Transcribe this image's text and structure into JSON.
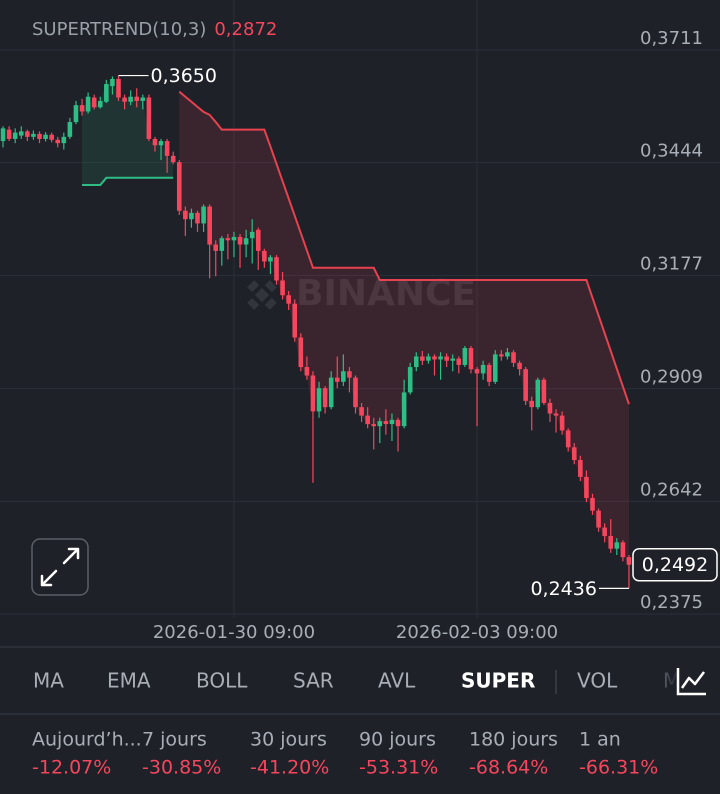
{
  "chart_data": {
    "type": "candlestick",
    "indicator": "SUPERTREND(10,3)",
    "indicator_value": {
      "value": 0.2872,
      "label": "0,2872"
    },
    "watermark": "BINANCE",
    "categories": [
      null,
      null,
      null,
      null,
      null,
      null,
      null,
      null,
      null,
      null,
      null,
      null,
      null,
      null,
      null,
      null,
      null,
      null,
      null,
      null,
      null,
      null,
      null,
      null,
      null,
      null,
      null,
      null,
      null,
      null,
      null,
      null,
      null,
      null,
      null,
      null,
      null,
      null,
      "2026-01-30 09:00",
      null,
      null,
      null,
      null,
      null,
      null,
      null,
      null,
      null,
      null,
      null,
      null,
      null,
      null,
      null,
      null,
      null,
      null,
      null,
      null,
      null,
      null,
      null,
      null,
      null,
      null,
      null,
      null,
      null,
      null,
      null,
      null,
      null,
      null,
      null,
      null,
      null,
      null,
      null,
      "2026-02-03 09:00",
      null,
      null,
      null,
      null,
      null,
      null,
      null,
      null,
      null,
      null,
      null,
      null,
      null,
      null,
      null,
      null,
      null,
      null,
      null,
      null,
      null,
      null,
      null,
      null,
      null
    ],
    "open": [
      0.3495,
      0.3522,
      0.35,
      0.3508,
      0.3518,
      0.3505,
      0.3512,
      0.35,
      0.351,
      0.3498,
      0.349,
      0.3505,
      0.354,
      0.358,
      0.3565,
      0.3598,
      0.3575,
      0.3588,
      0.3625,
      0.3642,
      0.3598,
      0.3588,
      0.36,
      0.359,
      0.3598,
      0.35,
      0.3485,
      0.3495,
      0.346,
      0.3445,
      0.333,
      0.331,
      0.3325,
      0.33,
      0.334,
      0.325,
      0.3235,
      0.3265,
      0.326,
      0.3268,
      0.325,
      0.3265,
      0.3285,
      0.3235,
      0.321,
      0.322,
      0.3165,
      0.313,
      0.311,
      0.303,
      0.296,
      0.294,
      0.2855,
      0.291,
      0.2865,
      0.2935,
      0.2925,
      0.295,
      0.2935,
      0.2865,
      0.2845,
      0.2825,
      0.282,
      0.2832,
      0.2825,
      0.2835,
      0.282,
      0.29,
      0.296,
      0.2985,
      0.2975,
      0.2985,
      0.2978,
      0.2985,
      0.2975,
      0.298,
      0.2965,
      0.3005,
      0.2955,
      0.2945,
      0.2965,
      0.2925,
      0.299,
      0.2985,
      0.2995,
      0.297,
      0.2955,
      0.288,
      0.2865,
      0.293,
      0.2875,
      0.285,
      0.2845,
      0.281,
      0.277,
      0.274,
      0.27,
      0.265,
      0.262,
      0.258,
      0.256,
      0.253,
      0.2545,
      0.251
    ],
    "high": [
      0.353,
      0.353,
      0.3525,
      0.353,
      0.3522,
      0.352,
      0.3518,
      0.3516,
      0.3515,
      0.3505,
      0.3515,
      0.355,
      0.359,
      0.3595,
      0.361,
      0.3605,
      0.36,
      0.364,
      0.3648,
      0.365,
      0.3605,
      0.3615,
      0.362,
      0.3605,
      0.3605,
      0.3505,
      0.35,
      0.35,
      0.347,
      0.345,
      0.334,
      0.3335,
      0.333,
      0.3345,
      0.3345,
      0.326,
      0.327,
      0.3275,
      0.328,
      0.3275,
      0.3285,
      0.331,
      0.329,
      0.324,
      0.3225,
      0.3225,
      0.3185,
      0.314,
      0.312,
      0.304,
      0.2985,
      0.295,
      0.2925,
      0.2915,
      0.295,
      0.2985,
      0.299,
      0.296,
      0.294,
      0.2875,
      0.2865,
      0.284,
      0.284,
      0.286,
      0.285,
      0.284,
      0.293,
      0.297,
      0.2995,
      0.2998,
      0.2992,
      0.299,
      0.2995,
      0.2992,
      0.299,
      0.2985,
      0.301,
      0.301,
      0.296,
      0.2975,
      0.297,
      0.3,
      0.3,
      0.3005,
      0.3,
      0.2975,
      0.296,
      0.289,
      0.2935,
      0.2935,
      0.2885,
      0.286,
      0.2855,
      0.2815,
      0.278,
      0.275,
      0.2715,
      0.266,
      0.2625,
      0.259,
      0.26,
      0.2555,
      0.255,
      0.2515
    ],
    "low": [
      0.348,
      0.3495,
      0.349,
      0.35,
      0.3495,
      0.3498,
      0.349,
      0.3494,
      0.3492,
      0.348,
      0.3475,
      0.35,
      0.3535,
      0.3555,
      0.356,
      0.357,
      0.3572,
      0.3585,
      0.3605,
      0.359,
      0.357,
      0.358,
      0.3575,
      0.357,
      0.3495,
      0.347,
      0.345,
      0.342,
      0.344,
      0.332,
      0.327,
      0.329,
      0.328,
      0.328,
      0.317,
      0.3175,
      0.32,
      0.3215,
      0.322,
      0.3195,
      0.322,
      0.3205,
      0.319,
      0.3195,
      0.318,
      0.3155,
      0.312,
      0.3095,
      0.302,
      0.295,
      0.293,
      0.2686,
      0.284,
      0.285,
      0.286,
      0.291,
      0.2915,
      0.29,
      0.285,
      0.283,
      0.2815,
      0.2765,
      0.278,
      0.28,
      0.2785,
      0.276,
      0.2815,
      0.2895,
      0.295,
      0.2965,
      0.2968,
      0.294,
      0.293,
      0.296,
      0.295,
      0.2945,
      0.296,
      0.2945,
      0.282,
      0.293,
      0.2915,
      0.292,
      0.2975,
      0.2978,
      0.296,
      0.294,
      0.287,
      0.281,
      0.286,
      0.287,
      0.283,
      0.2805,
      0.28,
      0.276,
      0.273,
      0.269,
      0.264,
      0.261,
      0.257,
      0.2545,
      0.252,
      0.2515,
      0.25,
      0.2436
    ],
    "close": [
      0.3525,
      0.35,
      0.3515,
      0.3518,
      0.3505,
      0.3512,
      0.35,
      0.351,
      0.3498,
      0.349,
      0.3505,
      0.354,
      0.358,
      0.3565,
      0.36,
      0.3575,
      0.359,
      0.363,
      0.3642,
      0.3598,
      0.3588,
      0.36,
      0.359,
      0.3598,
      0.35,
      0.3485,
      0.3495,
      0.346,
      0.3445,
      0.333,
      0.331,
      0.3325,
      0.33,
      0.334,
      0.325,
      0.3235,
      0.3265,
      0.326,
      0.3268,
      0.325,
      0.3265,
      0.328,
      0.3235,
      0.321,
      0.322,
      0.3165,
      0.313,
      0.311,
      0.303,
      0.296,
      0.294,
      0.2855,
      0.291,
      0.2865,
      0.2935,
      0.2925,
      0.295,
      0.2935,
      0.2865,
      0.2845,
      0.2825,
      0.282,
      0.2832,
      0.2825,
      0.2835,
      0.282,
      0.29,
      0.296,
      0.2985,
      0.2975,
      0.2985,
      0.2978,
      0.2985,
      0.2975,
      0.298,
      0.2965,
      0.3005,
      0.2955,
      0.2945,
      0.2965,
      0.2925,
      0.299,
      0.2985,
      0.2995,
      0.297,
      0.2955,
      0.288,
      0.2865,
      0.293,
      0.2875,
      0.285,
      0.2845,
      0.281,
      0.277,
      0.274,
      0.27,
      0.265,
      0.262,
      0.258,
      0.256,
      0.253,
      0.2545,
      0.251,
      0.2492
    ],
    "up_color": "#2ebd85",
    "down_color": "#f6465d",
    "supertrend_up": [
      null,
      null,
      null,
      null,
      null,
      null,
      null,
      null,
      null,
      null,
      null,
      null,
      null,
      0.3391,
      0.3391,
      0.3391,
      0.3391,
      0.3408,
      0.3408,
      0.3408,
      0.3408,
      0.3408,
      0.3408,
      0.3408,
      0.3408,
      0.3408,
      0.3408,
      0.3408,
      0.3408,
      null,
      null,
      null,
      null,
      null,
      null,
      null,
      null,
      null,
      null,
      null,
      null,
      null,
      null,
      null,
      null,
      null,
      null,
      null,
      null,
      null,
      null,
      null,
      null,
      null,
      null,
      null,
      null,
      null,
      null,
      null,
      null,
      null,
      null,
      null,
      null,
      null,
      null,
      null,
      null,
      null,
      null,
      null,
      null,
      null,
      null,
      null,
      null,
      null,
      null,
      null,
      null,
      null,
      null,
      null,
      null,
      null,
      null,
      null,
      null,
      null,
      null,
      null,
      null,
      null,
      null,
      null,
      null,
      null,
      null,
      null,
      null,
      null,
      null,
      null
    ],
    "supertrend_up_color": "#2ebd85",
    "supertrend_down": [
      null,
      null,
      null,
      null,
      null,
      null,
      null,
      null,
      null,
      null,
      null,
      null,
      null,
      null,
      null,
      null,
      null,
      null,
      null,
      null,
      null,
      null,
      null,
      null,
      null,
      null,
      null,
      null,
      null,
      0.3612,
      0.36,
      0.3588,
      0.3576,
      0.3564,
      0.3557,
      0.354,
      0.3522,
      0.3522,
      0.3522,
      0.3522,
      0.3522,
      0.3522,
      0.3522,
      0.3522,
      0.3482,
      0.3441,
      0.34,
      0.3359,
      0.3318,
      0.3277,
      0.3236,
      0.3195,
      0.3195,
      0.3195,
      0.3195,
      0.3195,
      0.3195,
      0.3195,
      0.3195,
      0.3195,
      0.3195,
      0.3195,
      0.3166,
      0.3166,
      0.3166,
      0.3166,
      0.3166,
      0.3166,
      0.3166,
      0.3166,
      0.3166,
      0.3166,
      0.3166,
      0.3166,
      0.3166,
      0.3166,
      0.3166,
      0.3166,
      0.3166,
      0.3166,
      0.3166,
      0.3166,
      0.3166,
      0.3166,
      0.3166,
      0.3166,
      0.3166,
      0.3166,
      0.3166,
      0.3166,
      0.3166,
      0.3166,
      0.3166,
      0.3166,
      0.3166,
      0.3166,
      0.3166,
      0.3124,
      0.3082,
      0.304,
      0.2998,
      0.2956,
      0.2914,
      0.2872
    ],
    "supertrend_down_color": "#e8414f",
    "ylim": [
      0.2302,
      0.381
    ],
    "yticks": [
      {
        "value": 0.3711,
        "label": "0,3711"
      },
      {
        "value": 0.3444,
        "label": "0,3444"
      },
      {
        "value": 0.3177,
        "label": "0,3177"
      },
      {
        "value": 0.2909,
        "label": "0,2909"
      },
      {
        "value": 0.2642,
        "label": "0,2642"
      },
      {
        "value": 0.2375,
        "label": "0,2375"
      }
    ],
    "grid": true,
    "high_label": {
      "value": 0.365,
      "label": "0,3650"
    },
    "low_label": {
      "value": 0.2436,
      "label": "0,2436"
    },
    "last_price": {
      "value": 0.2492,
      "label": "0,2492"
    }
  },
  "tabs": [
    "MA",
    "EMA",
    "BOLL",
    "SAR",
    "AVL",
    "SUPER",
    "VOL",
    "M"
  ],
  "active_tab": 5,
  "performance": [
    {
      "period": "Aujourd’h...",
      "change": "-12.07%"
    },
    {
      "period": "7 jours",
      "change": "-30.85%"
    },
    {
      "period": "30 jours",
      "change": "-41.20%"
    },
    {
      "period": "90 jours",
      "change": "-53.31%"
    },
    {
      "period": "180 jours",
      "change": "-68.64%"
    },
    {
      "period": "1 an",
      "change": "-66.31%"
    }
  ]
}
